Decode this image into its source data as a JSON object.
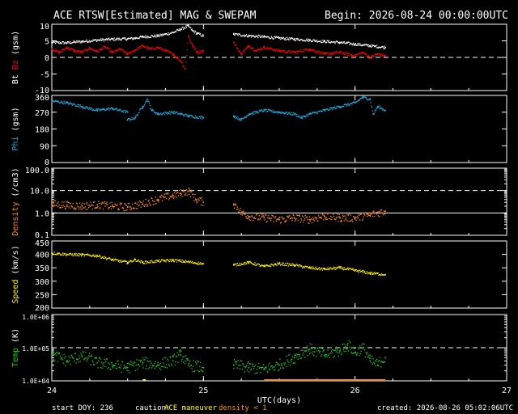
{
  "title": "ACE RTSW[Estimated] MAG & SWEPAM",
  "begin": "Begin: 2026-08-24 00:00:00UTC",
  "footer": {
    "start_doy": "start DOY: 236",
    "caution": "caution:",
    "maneuver": "ACE maneuver",
    "density": "density < 1",
    "created": "created: 2026-08-26 05:02:06UTC"
  },
  "colors": {
    "bt": "#ffffff",
    "bz": "#ff0000",
    "phi": "#22aadd",
    "density": "#ff8c1a",
    "speed": "#ffee00",
    "temp": "#22cc22",
    "maneuver": "#ffff00",
    "caution_density": "#ff8c1a",
    "axis": "#ffffff"
  },
  "chart_data": {
    "type": "line",
    "x": {
      "label": "UTC(days)",
      "range": [
        24,
        27
      ],
      "ticks": [
        {
          "value": 24,
          "label": "24"
        },
        {
          "value": 25,
          "label": "25"
        },
        {
          "value": 26,
          "label": "26"
        },
        {
          "value": 27,
          "label": "27"
        }
      ],
      "data_gap": [
        25.0,
        25.2
      ],
      "data_end": 26.2
    },
    "panels": [
      {
        "id": "mag",
        "ylabel_parts": [
          {
            "text": "Bt",
            "color": "#ffffff"
          },
          {
            "text": "Bz",
            "color": "#ff0000"
          },
          {
            "text": "(gsm)",
            "color": "#ffffff"
          }
        ],
        "ylim": [
          -10,
          10
        ],
        "yticks": [
          "10",
          "5",
          "0",
          "-5",
          "-10"
        ],
        "ytick_values": [
          10,
          5,
          0,
          -5,
          -10
        ],
        "dashed_lines": [
          0
        ],
        "series": [
          {
            "name": "Bt",
            "color": "#ffffff",
            "points": [
              [
                24.0,
                4.5
              ],
              [
                24.1,
                4.4
              ],
              [
                24.2,
                4.8
              ],
              [
                24.3,
                5.2
              ],
              [
                24.4,
                5.5
              ],
              [
                24.5,
                5.6
              ],
              [
                24.55,
                5.8
              ],
              [
                24.6,
                6.2
              ],
              [
                24.7,
                6.5
              ],
              [
                24.75,
                7.0
              ],
              [
                24.8,
                7.5
              ],
              [
                24.85,
                8.5
              ],
              [
                24.9,
                9.5
              ],
              [
                24.93,
                8.0
              ],
              [
                24.96,
                7.2
              ],
              [
                25.0,
                6.5
              ],
              [
                25.2,
                7.0
              ],
              [
                25.3,
                6.5
              ],
              [
                25.4,
                6.2
              ],
              [
                25.5,
                5.8
              ],
              [
                25.6,
                5.5
              ],
              [
                25.7,
                5.2
              ],
              [
                25.8,
                4.8
              ],
              [
                25.9,
                4.5
              ],
              [
                26.0,
                4.0
              ],
              [
                26.1,
                3.5
              ],
              [
                26.2,
                3.0
              ]
            ]
          },
          {
            "name": "Bz",
            "color": "#ff0000",
            "points": [
              [
                24.0,
                2.5
              ],
              [
                24.05,
                1.5
              ],
              [
                24.1,
                3.0
              ],
              [
                24.15,
                2.0
              ],
              [
                24.2,
                1.5
              ],
              [
                24.25,
                2.8
              ],
              [
                24.3,
                1.8
              ],
              [
                24.35,
                3.2
              ],
              [
                24.4,
                1.5
              ],
              [
                24.45,
                2.5
              ],
              [
                24.5,
                1.0
              ],
              [
                24.55,
                2.2
              ],
              [
                24.6,
                3.5
              ],
              [
                24.65,
                2.5
              ],
              [
                24.7,
                3.0
              ],
              [
                24.75,
                2.0
              ],
              [
                24.8,
                1.0
              ],
              [
                24.85,
                -1.0
              ],
              [
                24.88,
                -3.5
              ],
              [
                24.9,
                6.5
              ],
              [
                24.93,
                3.5
              ],
              [
                24.96,
                1.5
              ],
              [
                25.0,
                2.0
              ],
              [
                25.2,
                4.5
              ],
              [
                25.25,
                1.0
              ],
              [
                25.3,
                3.5
              ],
              [
                25.35,
                2.0
              ],
              [
                25.4,
                3.0
              ],
              [
                25.5,
                2.0
              ],
              [
                25.6,
                1.5
              ],
              [
                25.7,
                2.5
              ],
              [
                25.8,
                1.0
              ],
              [
                25.9,
                1.5
              ],
              [
                26.0,
                0.5
              ],
              [
                26.05,
                1.5
              ],
              [
                26.1,
                0.0
              ],
              [
                26.15,
                1.0
              ],
              [
                26.2,
                0.5
              ]
            ]
          }
        ]
      },
      {
        "id": "phi",
        "ylabel_parts": [
          {
            "text": "Phi",
            "color": "#22aadd"
          },
          {
            "text": "(gsm)",
            "color": "#ffffff"
          }
        ],
        "ylim": [
          0,
          360
        ],
        "yticks": [
          "360",
          "270",
          "180",
          "90",
          "0"
        ],
        "ytick_values": [
          360,
          270,
          180,
          90,
          0
        ],
        "dashed_lines": [],
        "series": [
          {
            "name": "Phi",
            "color": "#22aadd",
            "points": [
              [
                24.0,
                330
              ],
              [
                24.1,
                320
              ],
              [
                24.2,
                300
              ],
              [
                24.3,
                280
              ],
              [
                24.4,
                290
              ],
              [
                24.5,
                270
              ],
              [
                24.5,
                230
              ],
              [
                24.55,
                240
              ],
              [
                24.6,
                300
              ],
              [
                24.63,
                340
              ],
              [
                24.66,
                280
              ],
              [
                24.7,
                260
              ],
              [
                24.8,
                270
              ],
              [
                24.85,
                260
              ],
              [
                24.9,
                250
              ],
              [
                25.0,
                240
              ],
              [
                25.2,
                250
              ],
              [
                25.25,
                230
              ],
              [
                25.3,
                260
              ],
              [
                25.4,
                280
              ],
              [
                25.5,
                270
              ],
              [
                25.6,
                260
              ],
              [
                25.65,
                240
              ],
              [
                25.7,
                260
              ],
              [
                25.8,
                280
              ],
              [
                25.9,
                300
              ],
              [
                26.0,
                320
              ],
              [
                26.05,
                350
              ],
              [
                26.1,
                340
              ],
              [
                26.12,
                260
              ],
              [
                26.15,
                300
              ],
              [
                26.2,
                280
              ]
            ]
          }
        ]
      },
      {
        "id": "density",
        "ylabel_parts": [
          {
            "text": "Density",
            "color": "#ff8c1a"
          },
          {
            "text": "(/cm3)",
            "color": "#ffffff"
          }
        ],
        "log": true,
        "ylim": [
          0.1,
          100
        ],
        "yticks": [
          "100.0",
          "10.0",
          "1.0",
          "0.1"
        ],
        "ytick_values": [
          100,
          10,
          1,
          0.1
        ],
        "dashed_lines": [
          10
        ],
        "solid_lines": [
          1
        ],
        "series": [
          {
            "name": "Density",
            "color": "#ff8c1a",
            "points": [
              [
                24.0,
                2.5
              ],
              [
                24.1,
                2.2
              ],
              [
                24.2,
                2.0
              ],
              [
                24.3,
                2.3
              ],
              [
                24.4,
                2.0
              ],
              [
                24.5,
                1.8
              ],
              [
                24.6,
                2.5
              ],
              [
                24.7,
                4.0
              ],
              [
                24.8,
                6.0
              ],
              [
                24.85,
                7.5
              ],
              [
                24.9,
                9.5
              ],
              [
                24.95,
                4.0
              ],
              [
                25.0,
                3.0
              ],
              [
                25.2,
                2.5
              ],
              [
                25.25,
                1.0
              ],
              [
                25.3,
                0.7
              ],
              [
                25.4,
                0.6
              ],
              [
                25.5,
                0.5
              ],
              [
                25.6,
                0.6
              ],
              [
                25.7,
                0.5
              ],
              [
                25.8,
                0.7
              ],
              [
                25.9,
                0.6
              ],
              [
                26.0,
                0.6
              ],
              [
                26.1,
                0.8
              ],
              [
                26.2,
                1.2
              ]
            ]
          }
        ]
      },
      {
        "id": "speed",
        "ylabel_parts": [
          {
            "text": "Speed",
            "color": "#ffee00"
          },
          {
            "text": "(km/s)",
            "color": "#ffffff"
          }
        ],
        "ylim": [
          200,
          450
        ],
        "yticks": [
          "450",
          "400",
          "350",
          "300",
          "250",
          "200"
        ],
        "ytick_values": [
          450,
          400,
          350,
          300,
          250,
          200
        ],
        "dashed_lines": [],
        "series": [
          {
            "name": "Speed",
            "color": "#ffee00",
            "points": [
              [
                24.0,
                405
              ],
              [
                24.1,
                400
              ],
              [
                24.2,
                398
              ],
              [
                24.3,
                395
              ],
              [
                24.4,
                380
              ],
              [
                24.5,
                370
              ],
              [
                24.55,
                380
              ],
              [
                24.6,
                370
              ],
              [
                24.7,
                375
              ],
              [
                24.8,
                378
              ],
              [
                24.9,
                372
              ],
              [
                25.0,
                365
              ],
              [
                25.2,
                360
              ],
              [
                25.3,
                370
              ],
              [
                25.4,
                355
              ],
              [
                25.5,
                365
              ],
              [
                25.6,
                360
              ],
              [
                25.7,
                350
              ],
              [
                25.8,
                345
              ],
              [
                25.9,
                350
              ],
              [
                26.0,
                340
              ],
              [
                26.1,
                330
              ],
              [
                26.2,
                325
              ]
            ]
          }
        ]
      },
      {
        "id": "temp",
        "ylabel_parts": [
          {
            "text": "Temp",
            "color": "#22cc22"
          },
          {
            "text": "(K)",
            "color": "#ffffff"
          }
        ],
        "log": true,
        "ylim": [
          10000,
          1000000
        ],
        "yticks": [
          "1.0E+06",
          "1.0E+05",
          "1.0E+04"
        ],
        "ytick_values": [
          1000000,
          100000,
          10000
        ],
        "dashed_lines": [
          100000
        ],
        "series": [
          {
            "name": "Temp",
            "color": "#22cc22",
            "points": [
              [
                24.0,
                60000
              ],
              [
                24.1,
                40000
              ],
              [
                24.2,
                55000
              ],
              [
                24.3,
                35000
              ],
              [
                24.4,
                30000
              ],
              [
                24.5,
                25000
              ],
              [
                24.6,
                35000
              ],
              [
                24.7,
                30000
              ],
              [
                24.8,
                40000
              ],
              [
                24.85,
                60000
              ],
              [
                24.9,
                30000
              ],
              [
                25.0,
                25000
              ],
              [
                25.2,
                30000
              ],
              [
                25.3,
                25000
              ],
              [
                25.4,
                22000
              ],
              [
                25.5,
                30000
              ],
              [
                25.6,
                50000
              ],
              [
                25.7,
                90000
              ],
              [
                25.8,
                60000
              ],
              [
                25.9,
                80000
              ],
              [
                25.95,
                120000
              ],
              [
                26.0,
                70000
              ],
              [
                26.05,
                100000
              ],
              [
                26.1,
                40000
              ],
              [
                26.15,
                30000
              ],
              [
                26.2,
                50000
              ]
            ]
          }
        ]
      }
    ],
    "caution_bars": [
      {
        "label": "ACE maneuver",
        "color": "#ffff00",
        "x": [
          24.6,
          24.62
        ]
      },
      {
        "label": "density < 1",
        "color": "#ff8c1a",
        "x": [
          25.4,
          26.2
        ]
      }
    ]
  }
}
